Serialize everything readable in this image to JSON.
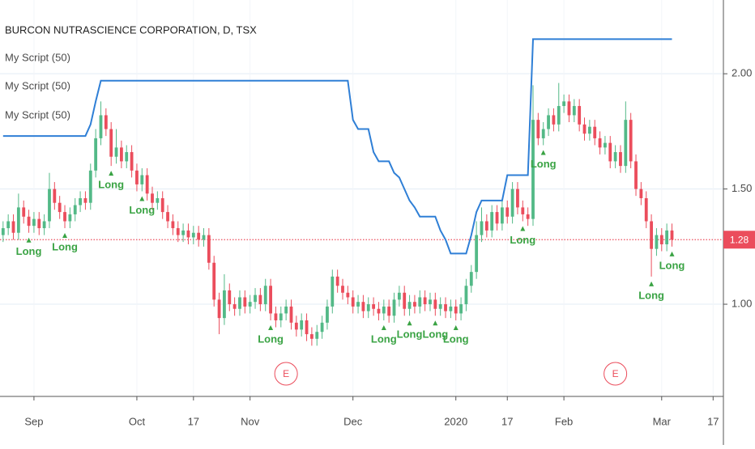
{
  "chart_data": {
    "type": "candlestick",
    "title": "BURCON NUTRASCIENCE CORPORATION, D, TSX",
    "legend": [
      "My Script (50)",
      "My Script (50)",
      "My Script (50)"
    ],
    "up_color": "#53b987",
    "down_color": "#eb4d5c",
    "open": [
      1.3,
      1.33,
      1.36,
      1.31,
      1.42,
      1.38,
      1.34,
      1.37,
      1.33,
      1.36,
      1.5,
      1.44,
      1.4,
      1.36,
      1.39,
      1.43,
      1.46,
      1.44,
      1.58,
      1.72,
      1.82,
      1.76,
      1.64,
      1.68,
      1.62,
      1.66,
      1.58,
      1.52,
      1.56,
      1.48,
      1.44,
      1.46,
      1.4,
      1.36,
      1.33,
      1.3,
      1.32,
      1.29,
      1.31,
      1.28,
      1.3,
      1.18,
      1.02,
      0.94,
      1.06,
      1.0,
      0.98,
      1.03,
      0.99,
      1.01,
      1.04,
      1.0,
      1.08,
      0.96,
      0.93,
      0.96,
      0.99,
      0.92,
      0.89,
      0.93,
      0.87,
      0.85,
      0.88,
      0.92,
      0.99,
      1.12,
      1.08,
      1.05,
      1.03,
      0.99,
      1.01,
      0.97,
      1.0,
      0.98,
      0.96,
      0.99,
      0.95,
      1.02,
      1.05,
      0.98,
      1.01,
      0.99,
      1.03,
      1.0,
      1.02,
      0.98,
      1.0,
      0.97,
      0.99,
      0.96,
      1.0,
      1.08,
      1.14,
      1.3,
      1.36,
      1.32,
      1.4,
      1.35,
      1.42,
      1.38,
      1.5,
      1.42,
      1.39,
      1.37,
      1.8,
      1.72,
      1.76,
      1.82,
      1.78,
      1.86,
      1.88,
      1.82,
      1.86,
      1.78,
      1.74,
      1.77,
      1.72,
      1.68,
      1.7,
      1.62,
      1.66,
      1.6,
      1.8,
      1.62,
      1.5,
      1.46,
      1.36,
      1.24,
      1.3,
      1.26,
      1.32
    ],
    "high": [
      1.36,
      1.39,
      1.39,
      1.48,
      1.45,
      1.41,
      1.4,
      1.4,
      1.39,
      1.57,
      1.53,
      1.47,
      1.43,
      1.42,
      1.46,
      1.49,
      1.49,
      1.61,
      1.76,
      1.88,
      1.85,
      1.79,
      1.76,
      1.71,
      1.69,
      1.69,
      1.61,
      1.59,
      1.59,
      1.51,
      1.49,
      1.49,
      1.43,
      1.39,
      1.36,
      1.35,
      1.35,
      1.34,
      1.34,
      1.33,
      1.33,
      1.21,
      1.05,
      1.13,
      1.09,
      1.03,
      1.06,
      1.06,
      1.04,
      1.07,
      1.07,
      1.11,
      1.11,
      0.99,
      0.99,
      1.02,
      1.02,
      0.95,
      0.96,
      0.96,
      0.9,
      0.91,
      0.95,
      1.02,
      1.15,
      1.15,
      1.11,
      1.08,
      1.06,
      1.04,
      1.04,
      1.03,
      1.03,
      1.01,
      1.02,
      1.02,
      1.05,
      1.08,
      1.08,
      1.04,
      1.04,
      1.06,
      1.06,
      1.05,
      1.05,
      1.03,
      1.03,
      1.02,
      1.02,
      1.03,
      1.11,
      1.17,
      1.36,
      1.42,
      1.39,
      1.43,
      1.43,
      1.45,
      1.45,
      1.53,
      1.53,
      1.45,
      1.42,
      1.95,
      1.83,
      1.79,
      1.85,
      1.85,
      1.96,
      1.91,
      1.91,
      1.89,
      1.89,
      1.81,
      1.8,
      1.8,
      1.75,
      1.73,
      1.73,
      1.69,
      1.69,
      1.88,
      1.83,
      1.65,
      1.53,
      1.49,
      1.39,
      1.33,
      1.33,
      1.35,
      1.35
    ],
    "low": [
      1.27,
      1.3,
      1.28,
      1.28,
      1.35,
      1.31,
      1.31,
      1.3,
      1.3,
      1.33,
      1.41,
      1.37,
      1.33,
      1.33,
      1.36,
      1.4,
      1.41,
      1.41,
      1.55,
      1.69,
      1.73,
      1.6,
      1.61,
      1.59,
      1.59,
      1.55,
      1.49,
      1.49,
      1.45,
      1.41,
      1.41,
      1.37,
      1.33,
      1.3,
      1.27,
      1.27,
      1.26,
      1.26,
      1.25,
      1.25,
      1.15,
      0.99,
      0.87,
      0.91,
      0.97,
      0.95,
      0.95,
      0.96,
      0.96,
      0.98,
      0.97,
      0.97,
      0.93,
      0.9,
      0.9,
      0.93,
      0.89,
      0.86,
      0.86,
      0.84,
      0.82,
      0.82,
      0.85,
      0.89,
      0.96,
      1.05,
      1.02,
      1.0,
      0.96,
      0.96,
      0.94,
      0.94,
      0.95,
      0.93,
      0.93,
      0.92,
      0.92,
      0.99,
      0.95,
      0.95,
      0.96,
      0.96,
      0.97,
      0.97,
      0.95,
      0.95,
      0.94,
      0.94,
      0.93,
      0.93,
      0.97,
      1.05,
      1.11,
      1.27,
      1.29,
      1.29,
      1.32,
      1.32,
      1.35,
      1.35,
      1.39,
      1.36,
      1.34,
      1.34,
      1.69,
      1.69,
      1.73,
      1.75,
      1.75,
      1.83,
      1.79,
      1.79,
      1.75,
      1.71,
      1.71,
      1.69,
      1.65,
      1.65,
      1.59,
      1.59,
      1.57,
      1.57,
      1.59,
      1.47,
      1.43,
      1.33,
      1.12,
      1.21,
      1.23,
      1.23,
      1.25
    ],
    "close": [
      1.33,
      1.36,
      1.31,
      1.42,
      1.38,
      1.34,
      1.37,
      1.33,
      1.36,
      1.5,
      1.44,
      1.4,
      1.36,
      1.39,
      1.43,
      1.46,
      1.44,
      1.58,
      1.72,
      1.82,
      1.76,
      1.64,
      1.68,
      1.62,
      1.66,
      1.58,
      1.52,
      1.56,
      1.48,
      1.44,
      1.46,
      1.4,
      1.36,
      1.33,
      1.3,
      1.32,
      1.29,
      1.31,
      1.28,
      1.3,
      1.18,
      1.02,
      0.94,
      1.06,
      1.0,
      0.98,
      1.03,
      0.99,
      1.01,
      1.04,
      1.0,
      1.08,
      0.96,
      0.93,
      0.96,
      0.99,
      0.92,
      0.89,
      0.93,
      0.87,
      0.85,
      0.88,
      0.92,
      0.99,
      1.12,
      1.08,
      1.05,
      1.03,
      0.99,
      1.01,
      0.97,
      1.0,
      0.98,
      0.96,
      0.99,
      0.95,
      1.02,
      1.05,
      0.98,
      1.01,
      0.99,
      1.03,
      1.0,
      1.02,
      0.98,
      1.0,
      0.97,
      0.99,
      0.96,
      1.0,
      1.08,
      1.14,
      1.3,
      1.36,
      1.32,
      1.4,
      1.35,
      1.42,
      1.38,
      1.5,
      1.42,
      1.39,
      1.37,
      1.8,
      1.72,
      1.76,
      1.82,
      1.78,
      1.86,
      1.88,
      1.82,
      1.86,
      1.78,
      1.74,
      1.77,
      1.72,
      1.68,
      1.7,
      1.62,
      1.66,
      1.6,
      1.8,
      1.62,
      1.5,
      1.46,
      1.36,
      1.24,
      1.3,
      1.26,
      1.32,
      1.28
    ],
    "series": [
      {
        "name": "My Script (50)",
        "color": "#2f7fd6",
        "values": [
          1.73,
          1.73,
          1.73,
          1.73,
          1.73,
          1.73,
          1.73,
          1.73,
          1.73,
          1.73,
          1.73,
          1.73,
          1.73,
          1.73,
          1.73,
          1.73,
          1.73,
          1.78,
          1.88,
          1.97,
          1.97,
          1.97,
          1.97,
          1.97,
          1.97,
          1.97,
          1.97,
          1.97,
          1.97,
          1.97,
          1.97,
          1.97,
          1.97,
          1.97,
          1.97,
          1.97,
          1.97,
          1.97,
          1.97,
          1.97,
          1.97,
          1.97,
          1.97,
          1.97,
          1.97,
          1.97,
          1.97,
          1.97,
          1.97,
          1.97,
          1.97,
          1.97,
          1.97,
          1.97,
          1.97,
          1.97,
          1.97,
          1.97,
          1.97,
          1.97,
          1.97,
          1.97,
          1.97,
          1.97,
          1.97,
          1.97,
          1.97,
          1.97,
          1.8,
          1.76,
          1.76,
          1.76,
          1.66,
          1.62,
          1.62,
          1.62,
          1.57,
          1.55,
          1.5,
          1.45,
          1.42,
          1.38,
          1.38,
          1.38,
          1.38,
          1.32,
          1.28,
          1.22,
          1.22,
          1.22,
          1.22,
          1.3,
          1.4,
          1.45,
          1.45,
          1.45,
          1.45,
          1.45,
          1.56,
          1.56,
          1.56,
          1.56,
          1.56,
          2.15,
          2.15,
          2.15,
          2.15,
          2.15,
          2.15,
          2.15,
          2.15,
          2.15,
          2.15,
          2.15,
          2.15,
          2.15,
          2.15,
          2.15,
          2.15,
          2.15,
          2.15,
          2.15,
          2.15,
          2.15,
          2.15,
          2.15,
          2.15,
          2.15,
          2.15,
          2.15,
          2.15
        ]
      }
    ],
    "signals": [
      {
        "index": 5,
        "label": "Long"
      },
      {
        "index": 12,
        "label": "Long"
      },
      {
        "index": 21,
        "label": "Long"
      },
      {
        "index": 27,
        "label": "Long"
      },
      {
        "index": 52,
        "label": "Long"
      },
      {
        "index": 74,
        "label": "Long"
      },
      {
        "index": 79,
        "label": "Long"
      },
      {
        "index": 84,
        "label": "Long"
      },
      {
        "index": 88,
        "label": "Long"
      },
      {
        "index": 101,
        "label": "Long"
      },
      {
        "index": 105,
        "label": "Long"
      },
      {
        "index": 126,
        "label": "Long"
      },
      {
        "index": 130,
        "label": "Long"
      }
    ],
    "events": [
      {
        "index": 55,
        "label": "E"
      },
      {
        "index": 119,
        "label": "E"
      }
    ],
    "last_price": 1.28,
    "last_price_color": "#eb4d5c",
    "xlim": [
      -0.6,
      140
    ],
    "ylim": [
      0.6,
      2.32
    ],
    "xticks": [
      {
        "value": 6,
        "label": "Sep"
      },
      {
        "value": 26,
        "label": "Oct"
      },
      {
        "value": 37,
        "label": "17"
      },
      {
        "value": 48,
        "label": "Nov"
      },
      {
        "value": 68,
        "label": "Dec"
      },
      {
        "value": 88,
        "label": "2020"
      },
      {
        "value": 98,
        "label": "17"
      },
      {
        "value": 109,
        "label": "Feb"
      },
      {
        "value": 128,
        "label": "Mar"
      },
      {
        "value": 138,
        "label": "17"
      }
    ],
    "yticks": [
      {
        "value": 1.0,
        "label": "1.00"
      },
      {
        "value": 1.5,
        "label": "1.50"
      },
      {
        "value": 2.0,
        "label": "2.00"
      }
    ],
    "grid": true
  }
}
